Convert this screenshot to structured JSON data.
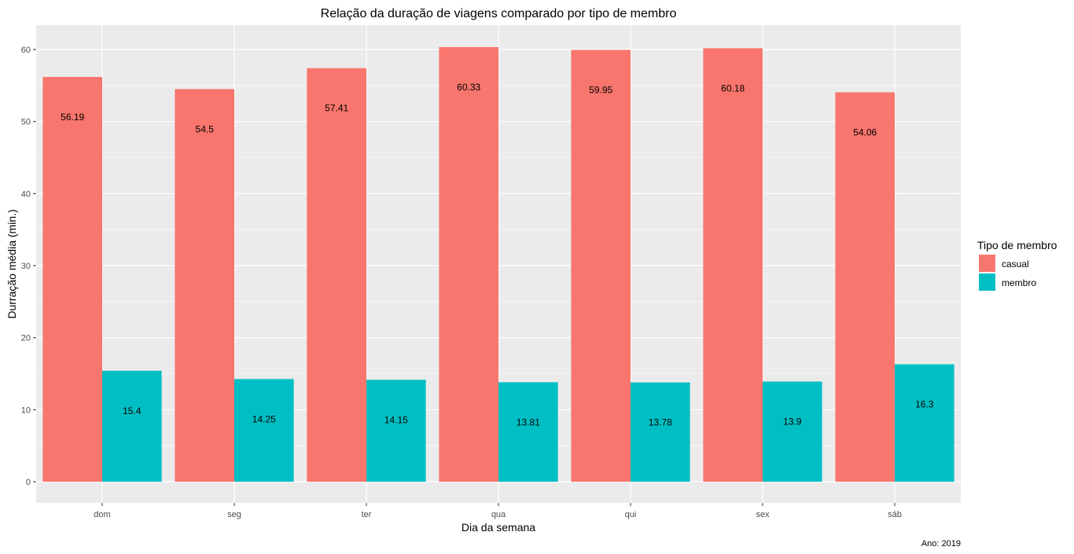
{
  "chart_data": {
    "type": "bar",
    "title": "Relação da duração de viagens comparado por tipo de membro",
    "xlabel": "Dia da semana",
    "ylabel": "Durração média (min.)",
    "caption": "Ano: 2019",
    "categories": [
      "dom",
      "seg",
      "ter",
      "qua",
      "qui",
      "sex",
      "sáb"
    ],
    "series": [
      {
        "name": "casual",
        "values": [
          56.19,
          54.5,
          57.41,
          60.33,
          59.95,
          60.18,
          54.06
        ],
        "color": "#F8766D"
      },
      {
        "name": "membro",
        "values": [
          15.4,
          14.25,
          14.15,
          13.81,
          13.78,
          13.9,
          16.3
        ],
        "color": "#00BFC4"
      }
    ],
    "ylim": [
      0,
      62
    ],
    "yticks": [
      0,
      10,
      20,
      30,
      40,
      50,
      60
    ],
    "grid": true,
    "legend": {
      "title": "Tipo de membro",
      "position": "right"
    },
    "panel_background": "#EBEBEB",
    "grid_color": "#FFFFFF"
  }
}
